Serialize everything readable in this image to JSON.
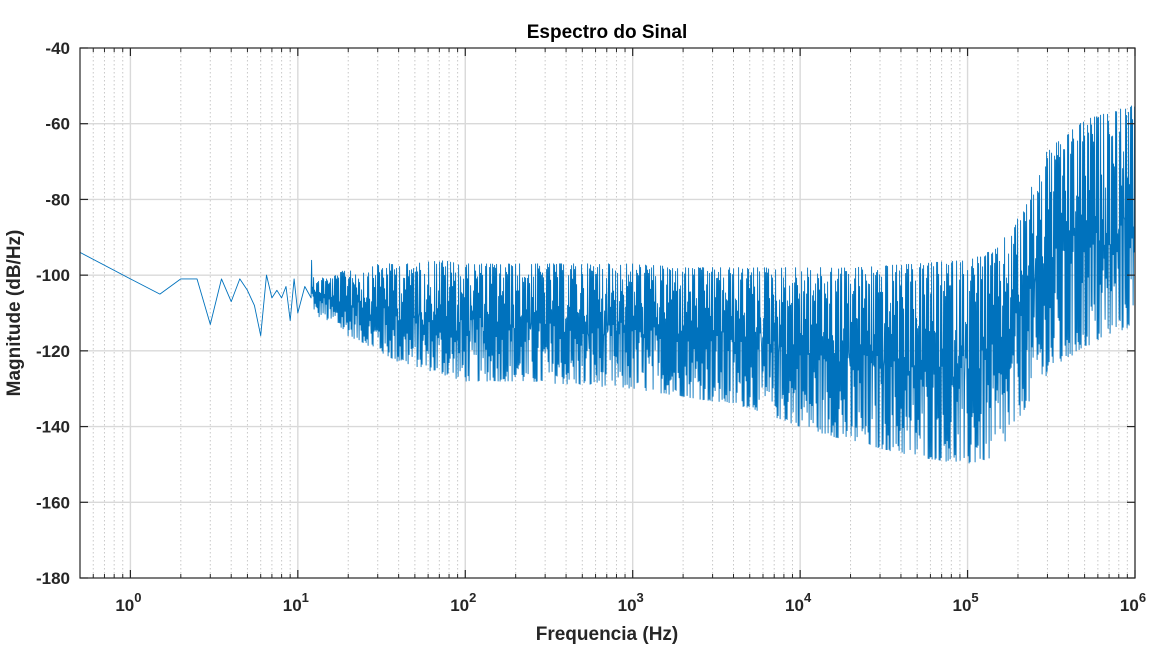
{
  "chart_data": {
    "type": "line",
    "title": "Espectro do Sinal",
    "xlabel": "Frequencia (Hz)",
    "ylabel": "Magnitude (dB/Hz)",
    "x_scale": "log",
    "xlim": [
      0.5,
      1000000
    ],
    "ylim": [
      -180,
      -40
    ],
    "x_ticks": [
      {
        "base": "10",
        "exp": "0",
        "value": 1
      },
      {
        "base": "10",
        "exp": "1",
        "value": 10
      },
      {
        "base": "10",
        "exp": "2",
        "value": 100
      },
      {
        "base": "10",
        "exp": "3",
        "value": 1000
      },
      {
        "base": "10",
        "exp": "4",
        "value": 10000
      },
      {
        "base": "10",
        "exp": "5",
        "value": 100000
      },
      {
        "base": "10",
        "exp": "6",
        "value": 1000000
      }
    ],
    "y_ticks": [
      "-40",
      "-60",
      "-80",
      "-100",
      "-120",
      "-140",
      "-160",
      "-180"
    ],
    "grid": true,
    "minor_grid": true,
    "series": [
      {
        "color": "#0072BD",
        "x": [
          0.5,
          1.0,
          1.5,
          2.0,
          2.5,
          3.0,
          3.5,
          4.0,
          4.5,
          5.0,
          5.5,
          6.0,
          6.5,
          7.0,
          7.5,
          8.0,
          8.5,
          9.0,
          9.5,
          10,
          11,
          12,
          13,
          14,
          15,
          17,
          20,
          25,
          30,
          40,
          50,
          70,
          100,
          200,
          500,
          1000,
          2000,
          5000,
          10000,
          20000,
          50000,
          100000,
          150000,
          200000,
          300000,
          500000,
          1000000
        ],
        "upper": [
          -94,
          -101,
          -105,
          -101,
          -101,
          -104,
          -101,
          -107,
          -101,
          -100,
          -108,
          -103,
          -100,
          -101,
          -104,
          -104,
          -103,
          -108,
          -101,
          -105,
          -103,
          -95,
          -102,
          -100,
          -101,
          -100,
          -98,
          -99,
          -97,
          -97,
          -97,
          -96,
          -97,
          -97,
          -97,
          -97,
          -98,
          -98,
          -98,
          -98,
          -97,
          -96,
          -93,
          -85,
          -67,
          -59,
          -55
        ],
        "lower": [
          -94,
          -101,
          -105,
          -101,
          -101,
          -113,
          -106,
          -107,
          -105,
          -104,
          -108,
          -116,
          -110,
          -106,
          -110,
          -106,
          -113,
          -112,
          -108,
          -110,
          -108,
          -106,
          -112,
          -110,
          -112,
          -113,
          -116,
          -118,
          -120,
          -123,
          -124,
          -126,
          -128,
          -128,
          -129,
          -130,
          -132,
          -135,
          -140,
          -144,
          -148,
          -150,
          -148,
          -138,
          -126,
          -119,
          -113
        ]
      }
    ]
  }
}
